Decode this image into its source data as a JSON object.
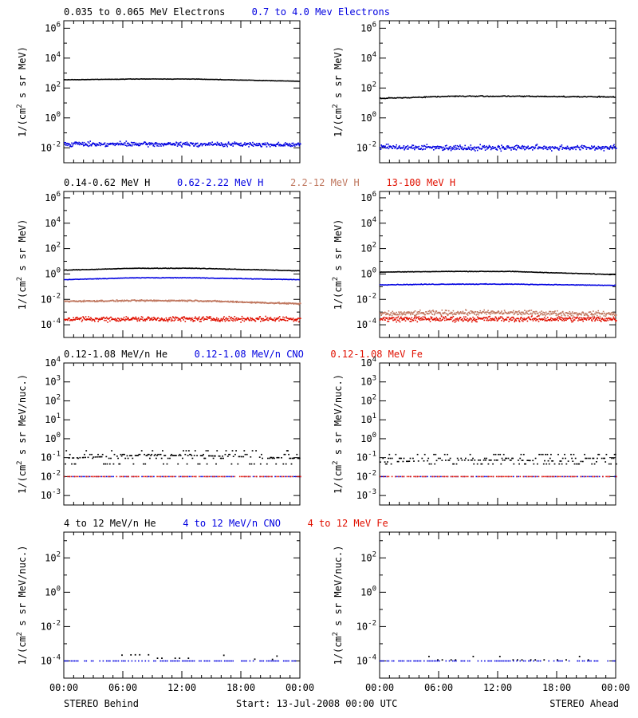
{
  "footer": {
    "left": "STEREO Behind",
    "center": "Start: 13-Jul-2008 00:00 UTC",
    "right": "STEREO Ahead"
  },
  "colors": {
    "black": "#000000",
    "blue": "#0000e0",
    "tan": "#c07860",
    "red": "#e01000"
  },
  "chart_data": [
    {
      "type": "scatter",
      "row": 1,
      "y_log": true,
      "ylim_log10": [
        -3,
        6.5
      ],
      "yticks_log10": [
        -2,
        0,
        2,
        4,
        6
      ],
      "ytick_labels": [
        "10-2",
        "100",
        "102",
        "104",
        "106"
      ],
      "ylabel": "1/(cm2 s sr MeV)",
      "xlim_hours": [
        0,
        24
      ],
      "xtick_labels": [
        "00:00",
        "06:00",
        "12:00",
        "18:00",
        "00:00"
      ],
      "titles": [
        {
          "text": "0.035 to 0.065 MeV Electrons",
          "color": "#000000"
        },
        {
          "text": "0.7 to 4.0 Mev Electrons",
          "color": "#0000e0"
        }
      ],
      "panels": [
        {
          "spacecraft": "STEREO Behind",
          "series": [
            {
              "color": "#000000",
              "style": "line",
              "log10_start": 2.55,
              "log10_mid": 2.6,
              "log10_end": 2.45,
              "scatter": 0.02
            },
            {
              "color": "#0000e0",
              "style": "dots",
              "log10_start": -1.7,
              "log10_mid": -1.72,
              "log10_end": -1.75,
              "scatter": 0.15
            }
          ]
        },
        {
          "spacecraft": "STEREO Ahead",
          "series": [
            {
              "color": "#000000",
              "style": "line",
              "log10_start": 1.3,
              "log10_mid": 1.45,
              "log10_end": 1.4,
              "scatter": 0.05
            },
            {
              "color": "#0000e0",
              "style": "dots",
              "log10_start": -1.9,
              "log10_mid": -1.95,
              "log10_end": -1.95,
              "scatter": 0.18
            }
          ]
        }
      ]
    },
    {
      "type": "scatter",
      "row": 2,
      "y_log": true,
      "ylim_log10": [
        -5,
        6.5
      ],
      "yticks_log10": [
        -4,
        -2,
        0,
        2,
        4,
        6
      ],
      "ytick_labels": [
        "10-4",
        "10-2",
        "100",
        "102",
        "104",
        "106"
      ],
      "ylabel": "1/(cm2 s sr MeV)",
      "xlim_hours": [
        0,
        24
      ],
      "xtick_labels": [
        "00:00",
        "06:00",
        "12:00",
        "18:00",
        "00:00"
      ],
      "titles": [
        {
          "text": "0.14-0.62 MeV H",
          "color": "#000000"
        },
        {
          "text": "0.62-2.22 MeV H",
          "color": "#0000e0"
        },
        {
          "text": "2.2-12 MeV H",
          "color": "#c07860"
        },
        {
          "text": "13-100 MeV H",
          "color": "#e01000"
        }
      ],
      "panels": [
        {
          "spacecraft": "STEREO Behind",
          "series": [
            {
              "color": "#000000",
              "style": "line",
              "log10_start": 0.3,
              "log10_mid": 0.45,
              "log10_end": 0.25,
              "scatter": 0.03
            },
            {
              "color": "#0000e0",
              "style": "line",
              "log10_start": -0.45,
              "log10_mid": -0.3,
              "log10_end": -0.45,
              "scatter": 0.03
            },
            {
              "color": "#c07860",
              "style": "dots",
              "log10_start": -2.1,
              "log10_mid": -2.05,
              "log10_end": -2.3,
              "scatter": 0.06
            },
            {
              "color": "#e01000",
              "style": "dots",
              "log10_start": -3.5,
              "log10_mid": -3.5,
              "log10_end": -3.5,
              "scatter": 0.2
            }
          ]
        },
        {
          "spacecraft": "STEREO Ahead",
          "series": [
            {
              "color": "#000000",
              "style": "line",
              "log10_start": 0.15,
              "log10_mid": 0.2,
              "log10_end": -0.05,
              "scatter": 0.03
            },
            {
              "color": "#0000e0",
              "style": "line",
              "log10_start": -0.85,
              "log10_mid": -0.8,
              "log10_end": -0.9,
              "scatter": 0.04
            },
            {
              "color": "#c07860",
              "style": "dots",
              "log10_start": -3.1,
              "log10_mid": -3.0,
              "log10_end": -3.1,
              "scatter": 0.2
            },
            {
              "color": "#e01000",
              "style": "dots",
              "log10_start": -3.5,
              "log10_mid": -3.5,
              "log10_end": -3.5,
              "scatter": 0.22
            }
          ]
        }
      ]
    },
    {
      "type": "scatter",
      "row": 3,
      "y_log": true,
      "ylim_log10": [
        -3.5,
        4
      ],
      "yticks_log10": [
        -3,
        -2,
        -1,
        0,
        1,
        2,
        3,
        4
      ],
      "ytick_labels": [
        "10-3",
        "10-2",
        "10-1",
        "100",
        "101",
        "102",
        "103",
        "104"
      ],
      "ylabel": "1/(cm2 s sr MeV/nuc.)",
      "xlim_hours": [
        0,
        24
      ],
      "xtick_labels": [
        "00:00",
        "06:00",
        "12:00",
        "18:00",
        "00:00"
      ],
      "titles": [
        {
          "text": "0.12-1.08 MeV/n He",
          "color": "#000000"
        },
        {
          "text": "0.12-1.08 MeV/n CNO",
          "color": "#0000e0"
        },
        {
          "text": "0.12-1.08 MeV Fe",
          "color": "#e01000"
        }
      ],
      "panels": [
        {
          "spacecraft": "STEREO Behind",
          "series": [
            {
              "color": "#000000",
              "style": "quantized",
              "levels_log10": [
                -1.3,
                -1.0,
                -0.8,
                -0.6
              ],
              "log10_start": -1.0,
              "log10_mid": -0.85,
              "log10_end": -1.0
            },
            {
              "color": "#0000e0",
              "style": "floor",
              "log10_start": -2.0,
              "log10_mid": -2.0,
              "log10_end": -2.0
            },
            {
              "color": "#e01000",
              "style": "floor",
              "log10_start": -2.0,
              "log10_mid": -2.0,
              "log10_end": -2.0
            }
          ]
        },
        {
          "spacecraft": "STEREO Ahead",
          "series": [
            {
              "color": "#000000",
              "style": "quantized",
              "levels_log10": [
                -1.3,
                -1.0,
                -0.8
              ],
              "log10_start": -1.2,
              "log10_mid": -1.1,
              "log10_end": -1.2
            },
            {
              "color": "#0000e0",
              "style": "floor",
              "log10_start": -2.0,
              "log10_mid": -2.0,
              "log10_end": -2.0
            },
            {
              "color": "#e01000",
              "style": "floor",
              "log10_start": -2.0,
              "log10_mid": -2.0,
              "log10_end": -2.0
            }
          ]
        }
      ]
    },
    {
      "type": "scatter",
      "row": 4,
      "y_log": true,
      "ylim_log10": [
        -5,
        3.5
      ],
      "yticks_log10": [
        -4,
        -2,
        0,
        2
      ],
      "ytick_labels": [
        "10-4",
        "10-2",
        "100",
        "102"
      ],
      "ylabel": "1/(cm2 s sr MeV/nuc.)",
      "xlim_hours": [
        0,
        24
      ],
      "xtick_labels": [
        "00:00",
        "06:00",
        "12:00",
        "18:00",
        "00:00"
      ],
      "titles": [
        {
          "text": "4 to 12 MeV/n He",
          "color": "#000000"
        },
        {
          "text": "4 to 12 MeV/n CNO",
          "color": "#0000e0"
        },
        {
          "text": "4 to 12 MeV Fe",
          "color": "#e01000"
        }
      ],
      "panels": [
        {
          "spacecraft": "STEREO Behind",
          "series": [
            {
              "color": "#000000",
              "style": "sparse",
              "log10_start": -3.9,
              "log10_mid": -3.8,
              "log10_end": -3.9
            },
            {
              "color": "#0000e0",
              "style": "floor",
              "log10_start": -4.0,
              "log10_mid": -4.0,
              "log10_end": -4.0
            }
          ]
        },
        {
          "spacecraft": "STEREO Ahead",
          "series": [
            {
              "color": "#000000",
              "style": "sparse",
              "log10_start": -3.9,
              "log10_mid": -3.9,
              "log10_end": -3.9
            },
            {
              "color": "#0000e0",
              "style": "floor",
              "log10_start": -4.0,
              "log10_mid": -4.0,
              "log10_end": -4.0
            }
          ]
        }
      ]
    }
  ]
}
